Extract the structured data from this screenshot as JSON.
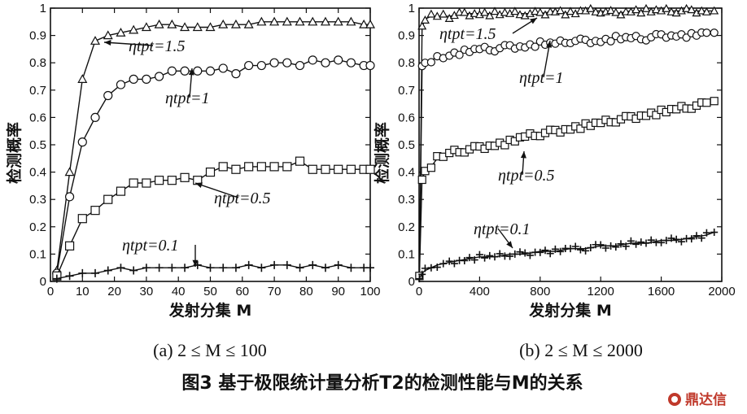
{
  "figure_title": "图3  基于极限统计量分析T2的检测性能与M的关系",
  "watermark": "鼎达信",
  "chart_data": [
    {
      "type": "line",
      "panel": "a",
      "caption": "(a) 2 ≤ M ≤ 100",
      "xlabel": "发射分集 M",
      "ylabel": "检测概率",
      "xlim": [
        0,
        100
      ],
      "ylim": [
        0,
        1
      ],
      "xticks": [
        0,
        10,
        20,
        30,
        40,
        50,
        60,
        70,
        80,
        90,
        100
      ],
      "yticks": [
        0,
        0.1,
        0.2,
        0.3,
        0.4,
        0.5,
        0.6,
        0.7,
        0.8,
        0.9,
        1
      ],
      "ytick_labels": [
        "0",
        "0.1",
        "0.2",
        "0.3",
        "0.4",
        "0.5",
        "0.6",
        "0.7",
        "0.8",
        "0.9",
        "1"
      ],
      "grid": false,
      "series": [
        {
          "name": "ηtpt=1.5",
          "marker": "triangle",
          "x": [
            2,
            6,
            10,
            14,
            18,
            22,
            26,
            30,
            34,
            38,
            42,
            46,
            50,
            54,
            58,
            62,
            66,
            70,
            74,
            78,
            82,
            86,
            90,
            94,
            98,
            100
          ],
          "y": [
            0.04,
            0.4,
            0.74,
            0.88,
            0.9,
            0.91,
            0.92,
            0.93,
            0.94,
            0.94,
            0.93,
            0.93,
            0.93,
            0.94,
            0.94,
            0.94,
            0.95,
            0.95,
            0.95,
            0.95,
            0.95,
            0.95,
            0.95,
            0.95,
            0.94,
            0.94
          ]
        },
        {
          "name": "ηtpt=1",
          "marker": "circle",
          "x": [
            2,
            6,
            10,
            14,
            18,
            22,
            26,
            30,
            34,
            38,
            42,
            46,
            50,
            54,
            58,
            62,
            66,
            70,
            74,
            78,
            82,
            86,
            90,
            94,
            98,
            100
          ],
          "y": [
            0.03,
            0.31,
            0.51,
            0.6,
            0.68,
            0.72,
            0.74,
            0.74,
            0.75,
            0.77,
            0.77,
            0.77,
            0.77,
            0.78,
            0.76,
            0.79,
            0.79,
            0.8,
            0.8,
            0.79,
            0.81,
            0.8,
            0.81,
            0.8,
            0.79,
            0.79
          ]
        },
        {
          "name": "ηtpt=0.5",
          "marker": "square",
          "x": [
            2,
            6,
            10,
            14,
            18,
            22,
            26,
            30,
            34,
            38,
            42,
            46,
            50,
            54,
            58,
            62,
            66,
            70,
            74,
            78,
            82,
            86,
            90,
            94,
            98,
            100
          ],
          "y": [
            0.02,
            0.13,
            0.23,
            0.26,
            0.3,
            0.33,
            0.36,
            0.36,
            0.37,
            0.37,
            0.38,
            0.37,
            0.4,
            0.42,
            0.41,
            0.42,
            0.42,
            0.42,
            0.42,
            0.44,
            0.41,
            0.41,
            0.41,
            0.41,
            0.41,
            0.41
          ]
        },
        {
          "name": "ηtpt=0.1",
          "marker": "plus",
          "x": [
            2,
            6,
            10,
            14,
            18,
            22,
            26,
            30,
            34,
            38,
            42,
            46,
            50,
            54,
            58,
            62,
            66,
            70,
            74,
            78,
            82,
            86,
            90,
            94,
            98,
            100
          ],
          "y": [
            0.01,
            0.02,
            0.03,
            0.03,
            0.04,
            0.05,
            0.04,
            0.05,
            0.05,
            0.05,
            0.05,
            0.06,
            0.05,
            0.05,
            0.05,
            0.06,
            0.05,
            0.06,
            0.06,
            0.05,
            0.06,
            0.05,
            0.06,
            0.05,
            0.05,
            0.05
          ]
        }
      ]
    },
    {
      "type": "line",
      "panel": "b",
      "caption": "(b) 2 ≤ M ≤ 2000",
      "xlabel": "发射分集 M",
      "ylabel": "检测概率",
      "xlim": [
        0,
        2000
      ],
      "ylim": [
        0,
        1
      ],
      "xticks": [
        0,
        400,
        800,
        1200,
        1600,
        2000
      ],
      "yticks": [
        0,
        0.1,
        0.2,
        0.3,
        0.4,
        0.5,
        0.6,
        0.7,
        0.8,
        0.9,
        1
      ],
      "ytick_labels": [
        "0",
        "0.1",
        "0.2",
        "0.3",
        "0.4",
        "0.5",
        "0.6",
        "0.7",
        "0.8",
        "0.9",
        "1"
      ],
      "grid": false,
      "series": [
        {
          "name": "ηtpt=1.5",
          "marker": "triangle",
          "x": [
            2,
            20,
            40,
            80,
            120,
            200,
            300,
            400,
            500,
            600,
            700,
            800,
            900,
            1000,
            1100,
            1200,
            1300,
            1400,
            1500,
            1600,
            1700,
            1800,
            1900,
            1950
          ],
          "y": [
            0.02,
            0.93,
            0.96,
            0.97,
            0.97,
            0.97,
            0.98,
            0.98,
            0.98,
            0.98,
            0.98,
            0.98,
            0.99,
            0.98,
            0.99,
            0.99,
            0.98,
            0.99,
            0.99,
            0.99,
            0.99,
            0.99,
            0.99,
            0.99
          ]
        },
        {
          "name": "ηtpt=1",
          "marker": "circle",
          "x": [
            2,
            20,
            40,
            80,
            120,
            200,
            300,
            400,
            500,
            600,
            700,
            800,
            900,
            1000,
            1100,
            1200,
            1300,
            1400,
            1500,
            1600,
            1700,
            1800,
            1900,
            1950
          ],
          "y": [
            0.02,
            0.78,
            0.8,
            0.81,
            0.82,
            0.83,
            0.84,
            0.85,
            0.85,
            0.86,
            0.86,
            0.87,
            0.87,
            0.88,
            0.88,
            0.88,
            0.89,
            0.89,
            0.89,
            0.9,
            0.9,
            0.9,
            0.91,
            0.91
          ]
        },
        {
          "name": "ηtpt=0.5",
          "marker": "square",
          "x": [
            2,
            20,
            40,
            80,
            120,
            200,
            300,
            400,
            500,
            600,
            700,
            800,
            900,
            1000,
            1100,
            1200,
            1300,
            1400,
            1500,
            1600,
            1700,
            1800,
            1900,
            1950
          ],
          "y": [
            0.02,
            0.38,
            0.4,
            0.42,
            0.45,
            0.47,
            0.48,
            0.49,
            0.5,
            0.51,
            0.53,
            0.54,
            0.55,
            0.56,
            0.57,
            0.58,
            0.59,
            0.6,
            0.61,
            0.62,
            0.63,
            0.64,
            0.65,
            0.66
          ]
        },
        {
          "name": "ηtpt=0.1",
          "marker": "plus",
          "x": [
            2,
            20,
            40,
            80,
            120,
            200,
            300,
            400,
            500,
            600,
            700,
            800,
            900,
            1000,
            1100,
            1200,
            1300,
            1400,
            1500,
            1600,
            1700,
            1800,
            1900,
            1950
          ],
          "y": [
            0.01,
            0.03,
            0.04,
            0.05,
            0.06,
            0.07,
            0.08,
            0.09,
            0.09,
            0.1,
            0.1,
            0.11,
            0.11,
            0.12,
            0.12,
            0.13,
            0.13,
            0.14,
            0.14,
            0.15,
            0.15,
            0.16,
            0.17,
            0.18
          ]
        }
      ]
    }
  ],
  "annotations": {
    "a": [
      {
        "label": "ηtpt=1.5",
        "series": 0
      },
      {
        "label": "ηtpt=1",
        "series": 1
      },
      {
        "label": "ηtpt=0.5",
        "series": 2
      },
      {
        "label": "ηtpt=0.1",
        "series": 3
      }
    ],
    "b": [
      {
        "label": "ηtpt=1.5",
        "series": 0
      },
      {
        "label": "ηtpt=1",
        "series": 1
      },
      {
        "label": "ηtpt=0.5",
        "series": 2
      },
      {
        "label": "ηtpt=0.1",
        "series": 3
      }
    ]
  }
}
